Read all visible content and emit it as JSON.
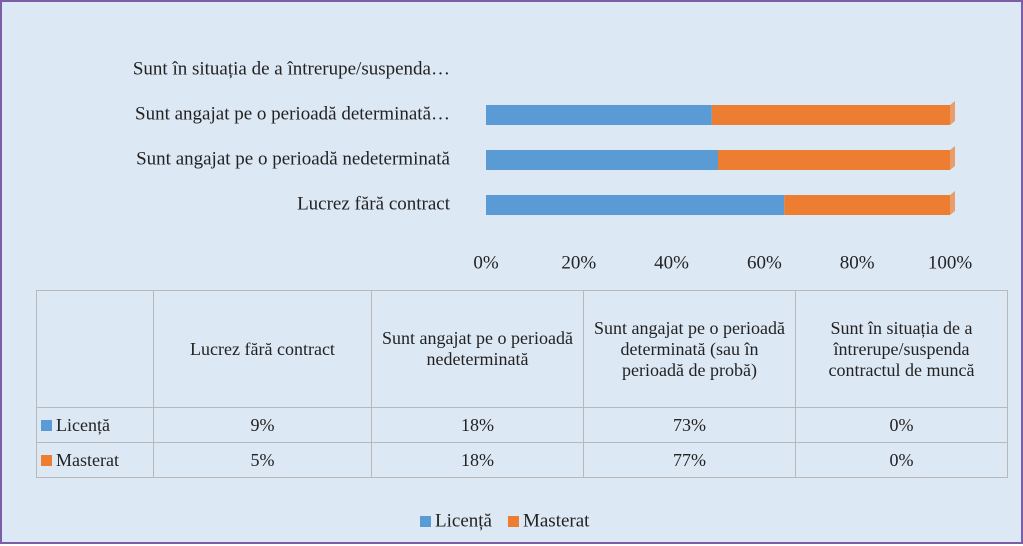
{
  "chart_data": {
    "type": "stacked_bar_100",
    "categories": [
      "Lucrez fără contract",
      "Sunt angajat pe o perioadă nedeterminată",
      "Sunt angajat pe o perioadă determinată (sau în perioadă de probă)",
      "Sunt în situația de a întrerupe/suspenda contractul de muncă"
    ],
    "axis_labels": [
      "Lucrez fără contract",
      "Sunt angajat pe o perioadă nedeterminată",
      "Sunt angajat pe o perioadă determinată…",
      "Sunt în situația de a întrerupe/suspenda…"
    ],
    "series": [
      {
        "name": "Licență",
        "color": "#5b9bd5",
        "values": [
          9,
          18,
          73,
          0
        ],
        "value_labels": [
          "9%",
          "18%",
          "73%",
          "0%"
        ]
      },
      {
        "name": "Masterat",
        "color": "#ed7d31",
        "values": [
          5,
          18,
          77,
          0
        ],
        "value_labels": [
          "5%",
          "18%",
          "77%",
          "0%"
        ]
      }
    ],
    "xlim": [
      0,
      100
    ],
    "xticks": [
      {
        "value": 0,
        "label": "0%"
      },
      {
        "value": 20,
        "label": "20%"
      },
      {
        "value": 40,
        "label": "40%"
      },
      {
        "value": 60,
        "label": "60%"
      },
      {
        "value": 80,
        "label": "80%"
      },
      {
        "value": 100,
        "label": "100%"
      }
    ],
    "legend": "bottom"
  }
}
